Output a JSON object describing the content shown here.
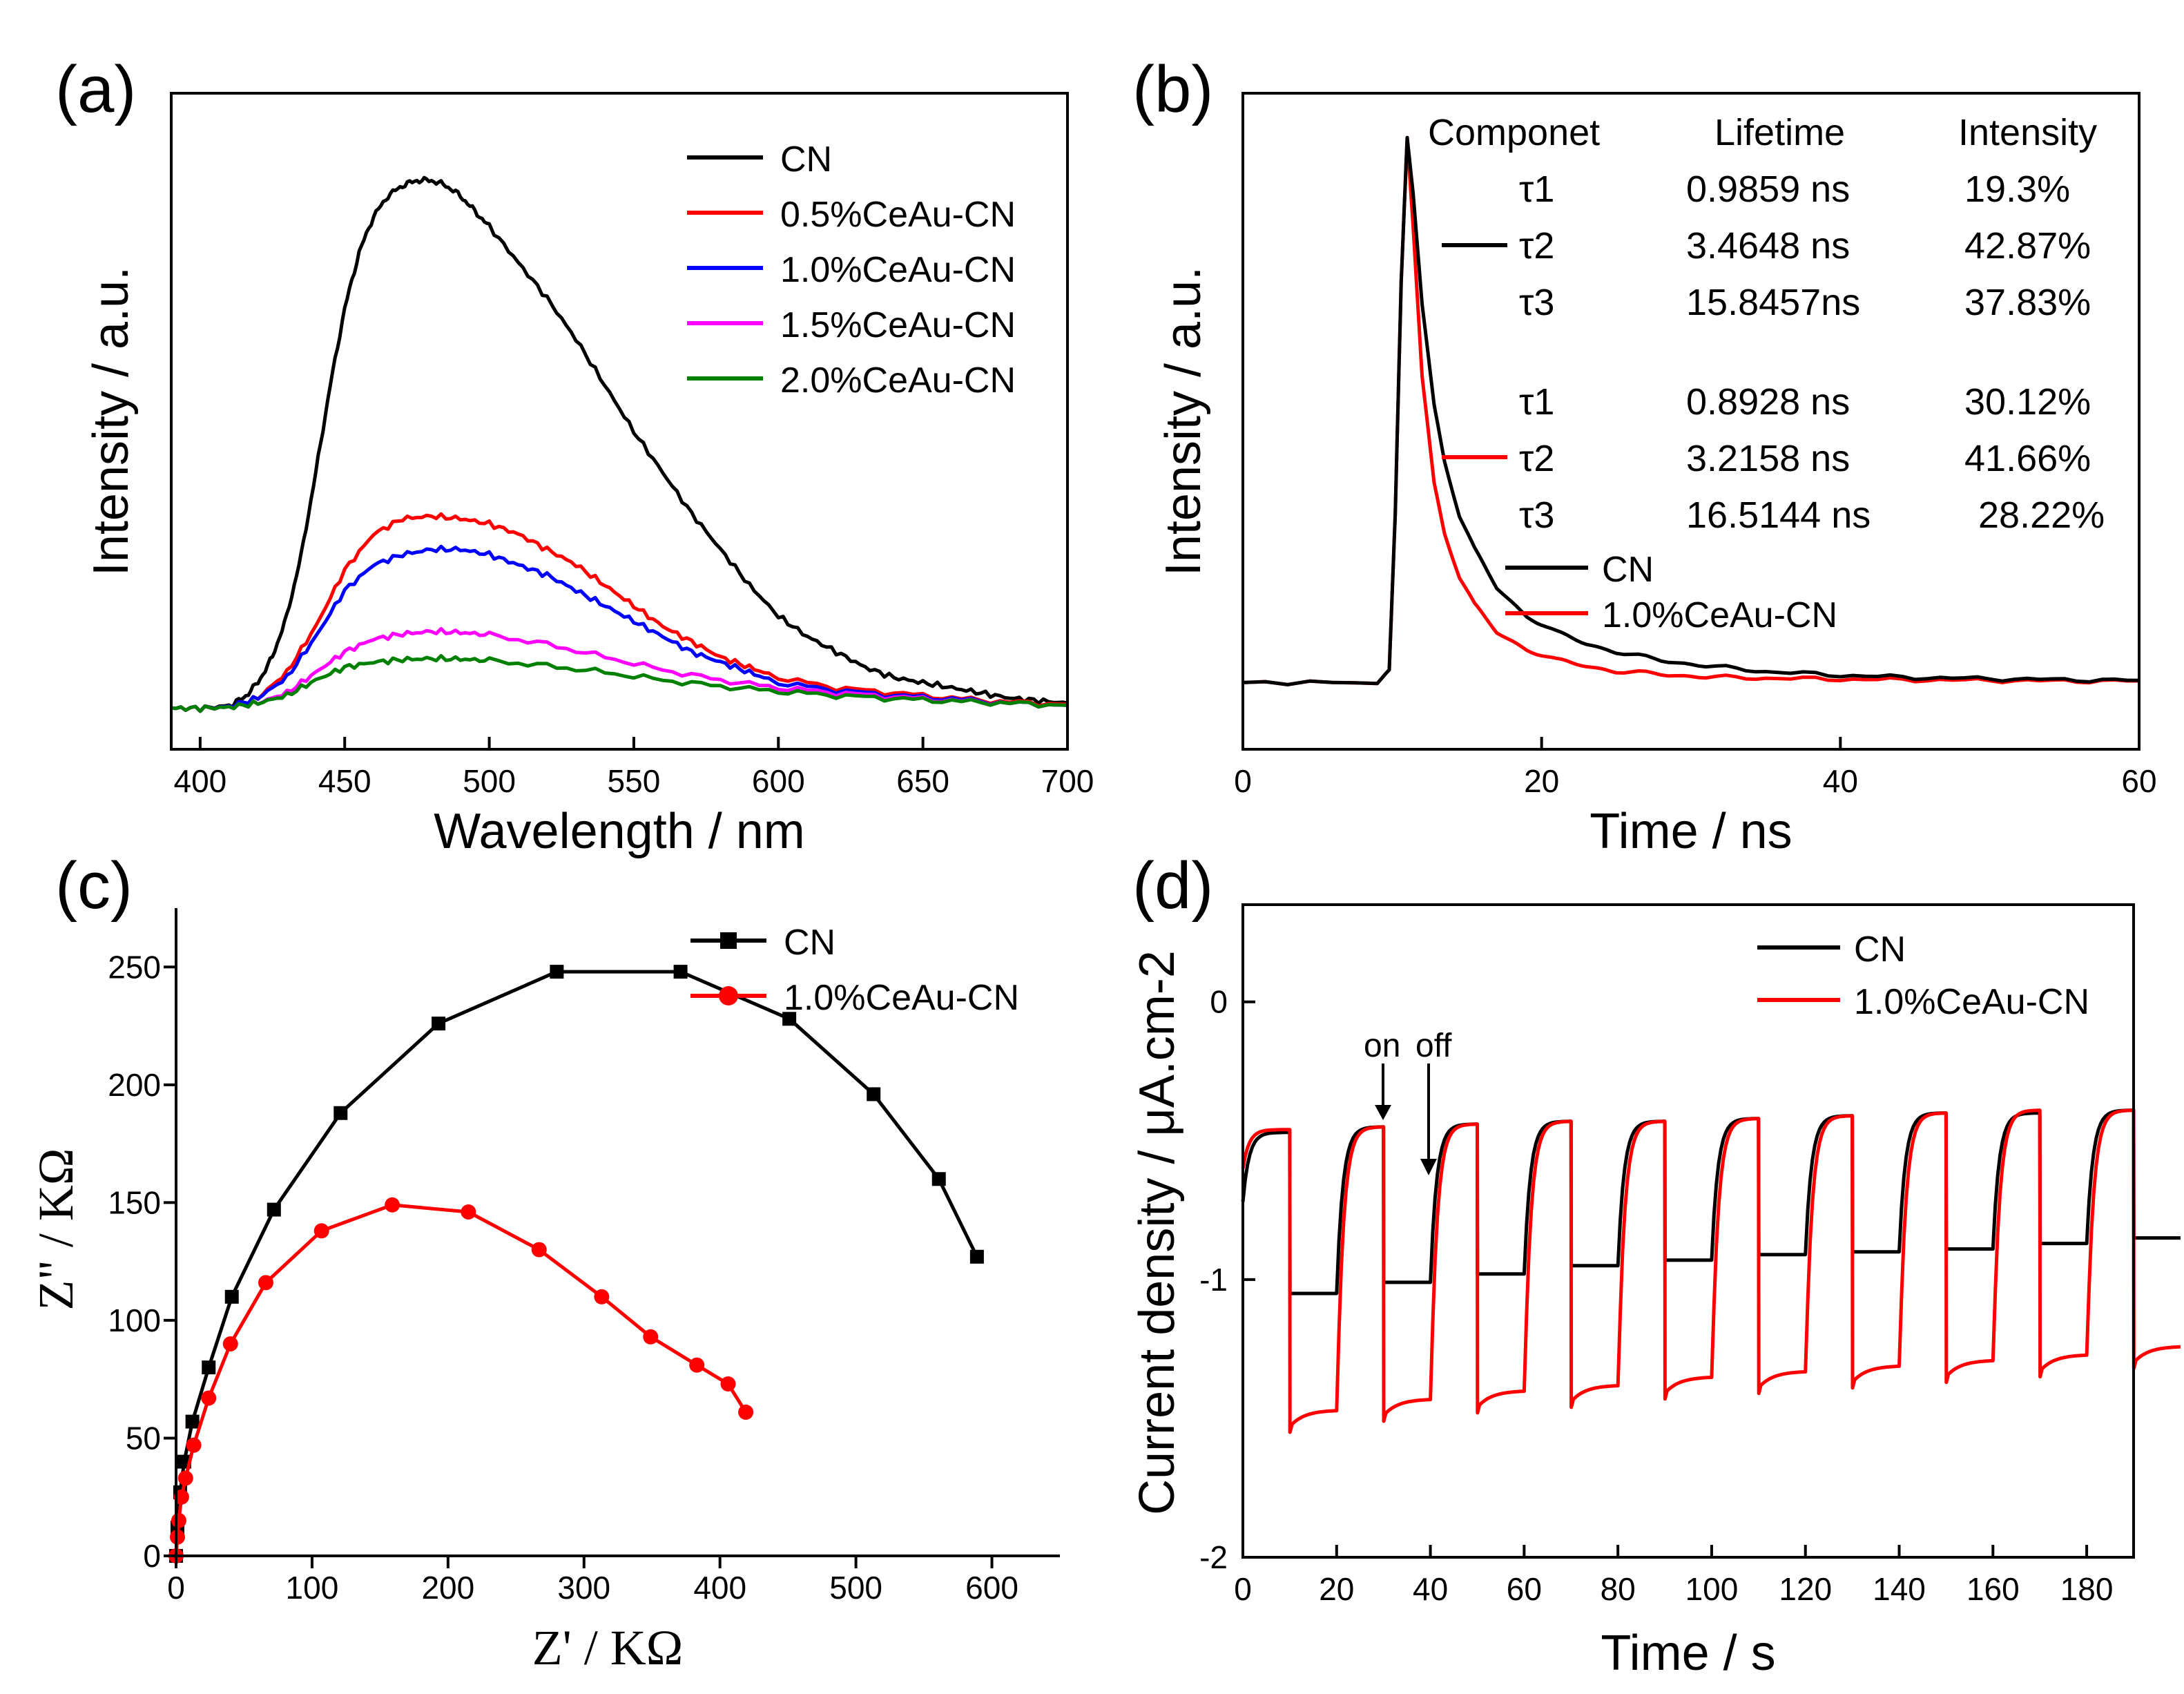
{
  "chart_data": [
    {
      "panel": "(a)",
      "type": "line",
      "xlabel": "Wavelength / nm",
      "ylabel": "Intensity / a.u.",
      "xlim": [
        390,
        700
      ],
      "ylim": [
        -0.08,
        1.2
      ],
      "xticks": [
        400,
        450,
        500,
        550,
        600,
        650,
        700
      ],
      "legend_position": "top-right",
      "series": [
        {
          "name": "CN",
          "color": "#000000",
          "x": [
            390,
            400,
            410,
            415,
            420,
            425,
            430,
            435,
            440,
            445,
            450,
            455,
            460,
            465,
            470,
            475,
            480,
            485,
            490,
            495,
            500,
            510,
            520,
            530,
            540,
            550,
            560,
            570,
            580,
            590,
            600,
            610,
            620,
            630,
            640,
            650,
            660,
            670,
            680,
            690,
            700
          ],
          "y": [
            0,
            0,
            0.005,
            0.02,
            0.05,
            0.1,
            0.18,
            0.3,
            0.46,
            0.63,
            0.78,
            0.89,
            0.96,
            1.0,
            1.02,
            1.03,
            1.03,
            1.02,
            1.0,
            0.97,
            0.94,
            0.87,
            0.8,
            0.72,
            0.63,
            0.54,
            0.46,
            0.38,
            0.31,
            0.24,
            0.18,
            0.14,
            0.11,
            0.08,
            0.06,
            0.05,
            0.04,
            0.03,
            0.02,
            0.015,
            0.01
          ]
        },
        {
          "name": "0.5%CeAu-CN",
          "color": "#ff0000",
          "x": [
            390,
            400,
            410,
            420,
            430,
            440,
            450,
            460,
            470,
            480,
            490,
            500,
            510,
            520,
            530,
            540,
            550,
            560,
            570,
            580,
            590,
            600,
            620,
            640,
            660,
            680,
            700
          ],
          "y": [
            0,
            0,
            0.003,
            0.02,
            0.07,
            0.16,
            0.27,
            0.34,
            0.37,
            0.375,
            0.37,
            0.36,
            0.34,
            0.31,
            0.28,
            0.24,
            0.2,
            0.16,
            0.13,
            0.1,
            0.08,
            0.06,
            0.04,
            0.03,
            0.02,
            0.012,
            0.008
          ]
        },
        {
          "name": "1.0%CeAu-CN",
          "color": "#0000ff",
          "x": [
            390,
            400,
            410,
            420,
            430,
            440,
            450,
            460,
            470,
            480,
            490,
            500,
            510,
            520,
            530,
            540,
            550,
            560,
            570,
            580,
            590,
            600,
            620,
            640,
            660,
            680,
            700
          ],
          "y": [
            0,
            0,
            0.003,
            0.02,
            0.06,
            0.14,
            0.23,
            0.28,
            0.3,
            0.31,
            0.31,
            0.3,
            0.28,
            0.26,
            0.23,
            0.2,
            0.17,
            0.14,
            0.11,
            0.09,
            0.07,
            0.05,
            0.035,
            0.025,
            0.018,
            0.01,
            0.006
          ]
        },
        {
          "name": "1.5%CeAu-CN",
          "color": "#ff00ff",
          "x": [
            390,
            400,
            410,
            420,
            430,
            440,
            450,
            460,
            470,
            480,
            490,
            500,
            520,
            540,
            560,
            580,
            600,
            620,
            640,
            660,
            680,
            700
          ],
          "y": [
            0,
            0,
            0.002,
            0.01,
            0.03,
            0.07,
            0.11,
            0.135,
            0.145,
            0.15,
            0.148,
            0.143,
            0.125,
            0.1,
            0.075,
            0.055,
            0.04,
            0.03,
            0.022,
            0.015,
            0.01,
            0.006
          ]
        },
        {
          "name": "2.0%CeAu-CN",
          "color": "#008000",
          "x": [
            390,
            400,
            410,
            420,
            430,
            440,
            450,
            460,
            470,
            480,
            490,
            500,
            520,
            540,
            560,
            580,
            600,
            620,
            640,
            660,
            680,
            700
          ],
          "y": [
            0,
            0,
            0.002,
            0.01,
            0.025,
            0.055,
            0.08,
            0.09,
            0.095,
            0.097,
            0.096,
            0.093,
            0.083,
            0.07,
            0.055,
            0.043,
            0.033,
            0.025,
            0.019,
            0.014,
            0.01,
            0.006
          ]
        }
      ]
    },
    {
      "panel": "(b)",
      "type": "line",
      "xlabel": "Time / ns",
      "ylabel": "Intensity / a.u.",
      "xlim": [
        0,
        60
      ],
      "ylim": [
        -0.12,
        1.06
      ],
      "xticks": [
        0,
        20,
        40,
        60
      ],
      "legend_position": "top-right",
      "series": [
        {
          "name": "CN",
          "color": "#000000",
          "x": [
            0,
            9,
            9.8,
            10.2,
            10.6,
            11,
            11.4,
            12,
            12.8,
            13.5,
            14.5,
            15.5,
            17,
            19,
            21,
            23,
            25,
            28,
            31,
            35,
            40,
            45,
            50,
            55,
            60
          ],
          "y": [
            0,
            0,
            0.02,
            0.3,
            0.72,
            0.98,
            0.88,
            0.68,
            0.5,
            0.4,
            0.3,
            0.24,
            0.17,
            0.12,
            0.09,
            0.07,
            0.055,
            0.04,
            0.03,
            0.02,
            0.013,
            0.009,
            0.007,
            0.005,
            0.004
          ]
        },
        {
          "name": "1.0%CeAu-CN",
          "color": "#ff0000",
          "x": [
            0,
            9,
            9.8,
            10.2,
            10.6,
            11,
            11.4,
            12,
            12.8,
            13.5,
            14.5,
            15.5,
            17,
            19,
            21,
            23,
            25,
            28,
            31,
            35,
            40,
            45,
            50,
            55,
            60
          ],
          "y": [
            0,
            0,
            0.02,
            0.3,
            0.72,
            0.98,
            0.82,
            0.55,
            0.36,
            0.27,
            0.19,
            0.14,
            0.09,
            0.06,
            0.04,
            0.03,
            0.02,
            0.015,
            0.01,
            0.008,
            0.006,
            0.005,
            0.004,
            0.003,
            0.003
          ]
        }
      ],
      "lifetime_table": {
        "headers": [
          "Componet",
          "Lifetime",
          "Intensity"
        ],
        "groups": [
          {
            "sample": "CN",
            "color": "#000000",
            "rows": [
              [
                "τ1",
                "0.9859 ns",
                "19.3%"
              ],
              [
                "τ2",
                "3.4648 ns",
                "42.87%"
              ],
              [
                "τ3",
                "15.8457ns",
                "37.83%"
              ]
            ]
          },
          {
            "sample": "1.0%CeAu-CN",
            "color": "#ff0000",
            "rows": [
              [
                "τ1",
                "0.8928 ns",
                "30.12%"
              ],
              [
                "τ2",
                "3.2158 ns",
                "41.66%"
              ],
              [
                "τ3",
                "16.5144 ns",
                "28.22%"
              ]
            ]
          }
        ]
      }
    },
    {
      "panel": "(c)",
      "type": "line",
      "markers": true,
      "xlabel": "Z' / KΩ",
      "ylabel": "Z\" / KΩ",
      "xlim": [
        0,
        650
      ],
      "ylim": [
        0,
        275
      ],
      "xticks": [
        0,
        100,
        200,
        300,
        400,
        500,
        600
      ],
      "yticks": [
        0,
        50,
        100,
        150,
        200,
        250
      ],
      "legend_position": "top-right",
      "series": [
        {
          "name": "CN",
          "color": "#000000",
          "marker": "square",
          "x": [
            0,
            1,
            3,
            6,
            12,
            24,
            41,
            72,
            121,
            193,
            280,
            371,
            451,
            513,
            561,
            589
          ],
          "y": [
            0,
            12,
            27,
            40,
            57,
            80,
            110,
            147,
            188,
            226,
            248,
            248,
            228,
            196,
            160,
            127
          ]
        },
        {
          "name": "1.0%CeAu-CN",
          "color": "#ff0000",
          "marker": "circle",
          "x": [
            0,
            1,
            2,
            4,
            7,
            13,
            24,
            40,
            66,
            107,
            159,
            215,
            267,
            313,
            349,
            383,
            406,
            419
          ],
          "y": [
            0,
            8,
            15,
            25,
            33,
            47,
            67,
            90,
            116,
            138,
            149,
            146,
            130,
            110,
            93,
            81,
            73,
            61
          ]
        }
      ]
    },
    {
      "panel": "(d)",
      "type": "line",
      "xlabel": "Time / s",
      "ylabel": "Current density / μA.cm-2",
      "xlim": [
        0,
        190
      ],
      "ylim": [
        -2,
        0.35
      ],
      "xticks": [
        0,
        20,
        40,
        60,
        80,
        100,
        120,
        140,
        160,
        180
      ],
      "yticks": [
        0,
        -1,
        -2
      ],
      "legend_position": "top-right",
      "annotations": [
        "on",
        "off"
      ],
      "series": [
        {
          "name": "CN",
          "color": "#000000",
          "dark_current": [
            -1.05,
            -1.01,
            -0.98,
            -0.95,
            -0.93,
            -0.91,
            -0.9,
            -0.89,
            -0.87,
            -0.85
          ],
          "light_current": [
            -0.47,
            -0.45,
            -0.44,
            -0.43,
            -0.43,
            -0.42,
            -0.41,
            -0.4,
            -0.4,
            -0.39
          ]
        },
        {
          "name": "1.0%CeAu-CN",
          "color": "#ff0000",
          "dark_current": [
            -1.53,
            -1.49,
            -1.46,
            -1.44,
            -1.41,
            -1.39,
            -1.37,
            -1.35,
            -1.33,
            -1.3
          ],
          "light_current": [
            -0.46,
            -0.45,
            -0.44,
            -0.43,
            -0.43,
            -0.42,
            -0.41,
            -0.4,
            -0.39,
            -0.39
          ]
        }
      ]
    }
  ]
}
